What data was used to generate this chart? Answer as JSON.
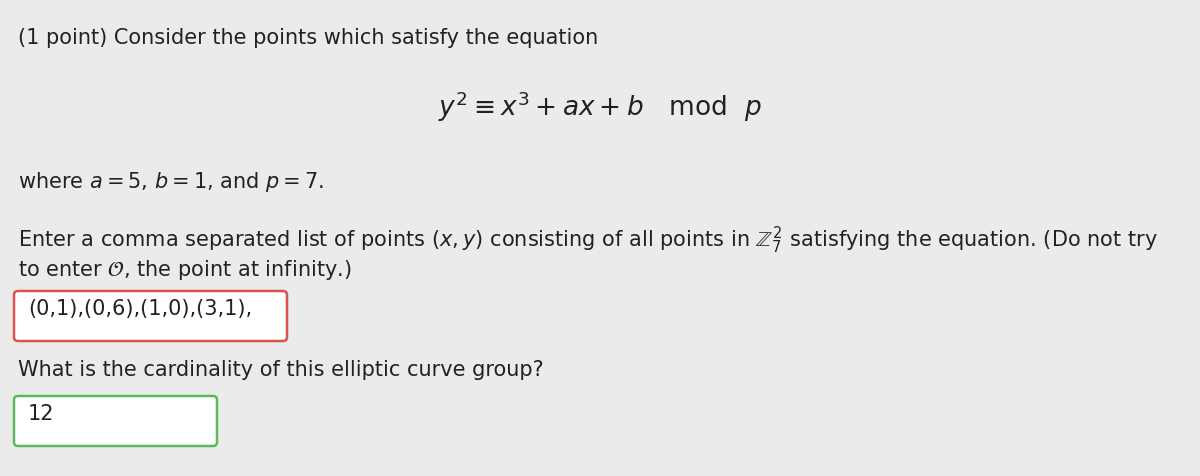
{
  "background_color": "#ebebeb",
  "title_line": "(1 point) Consider the points which satisfy the equation",
  "equation": "$y^2 \\equiv x^3 + ax + b \\quad \\mathrm{mod} \\ \\ p$",
  "where_line": "where $a = 5$, $b = 1$, and $p = 7$.",
  "enter_line1": "Enter a comma separated list of points $(x, y)$ consisting of all points in $\\mathbb{Z}_7^2$ satisfying the equation. (Do not try",
  "enter_line2": "to enter $\\mathcal{O}$, the point at infinity.)",
  "answer1": "(0,1),(0,6),(1,0),(3,1),",
  "question2": "What is the cardinality of this elliptic curve group?",
  "answer2": "12",
  "box1_color_border": "#d9534f",
  "box2_color_border": "#5cb85c",
  "text_color": "#222222",
  "font_size_main": 15,
  "font_size_eq": 19
}
